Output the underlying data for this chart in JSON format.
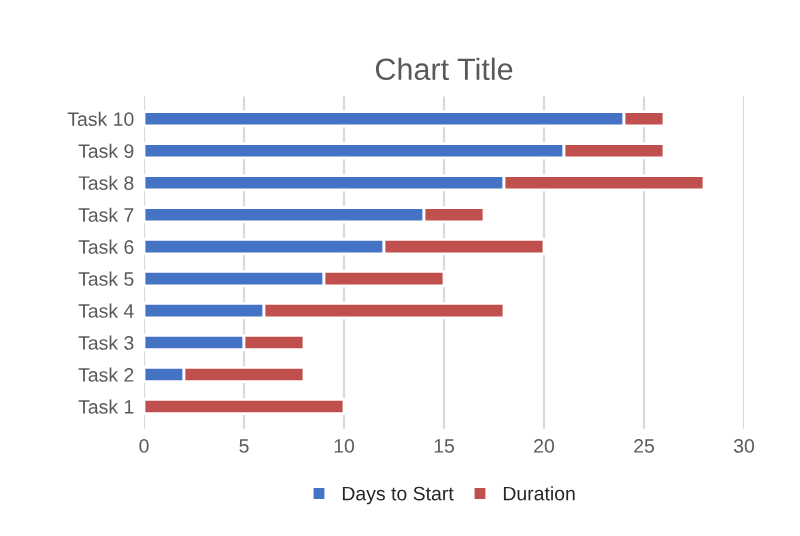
{
  "chart_data": {
    "type": "bar",
    "title": "Chart Title",
    "orientation": "horizontal",
    "stacked": true,
    "categories": [
      "Task 10",
      "Task 9",
      "Task 8",
      "Task 7",
      "Task 6",
      "Task 5",
      "Task 4",
      "Task 3",
      "Task 2",
      "Task 1"
    ],
    "series": [
      {
        "name": "Days to Start",
        "color": "#4472c4",
        "values": [
          24,
          21,
          18,
          14,
          12,
          9,
          6,
          5,
          2,
          0
        ]
      },
      {
        "name": "Duration",
        "color": "#c0504d",
        "values": [
          2,
          5,
          10,
          3,
          8,
          6,
          12,
          3,
          6,
          10
        ]
      }
    ],
    "xlim": [
      0,
      30
    ],
    "xticks": [
      0,
      5,
      10,
      15,
      20,
      25,
      30
    ],
    "grid": "x",
    "legend": "bottom"
  }
}
